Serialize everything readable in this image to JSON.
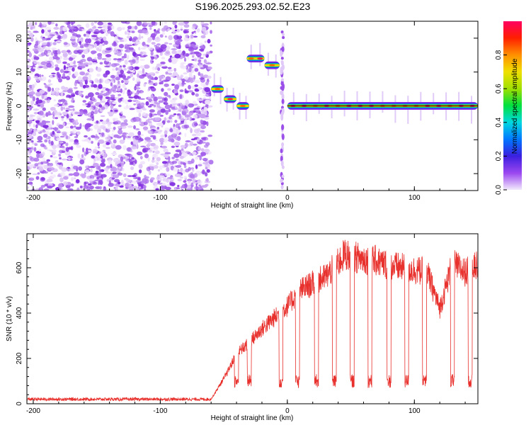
{
  "title": "S196.2025.293.02.52.E23",
  "chart_data": [
    {
      "type": "heatmap",
      "name": "spectrogram",
      "xlabel": "Height of straight line (km)",
      "ylabel": "Frequency (Hz)",
      "xlim": [
        -205,
        150
      ],
      "ylim": [
        -25,
        25
      ],
      "xticks": [
        -200,
        -100,
        0,
        100
      ],
      "yticks": [
        -20,
        -10,
        0,
        10,
        20
      ],
      "regions": [
        {
          "label": "noise",
          "x_range": [
            -205,
            -60
          ],
          "y_range": [
            -25,
            25
          ]
        },
        {
          "label": "tone",
          "x_range": [
            -60,
            -50
          ],
          "freq": 5
        },
        {
          "label": "tone",
          "x_range": [
            -50,
            -40
          ],
          "freq": 2
        },
        {
          "label": "tone",
          "x_range": [
            -40,
            -30
          ],
          "freq": 0
        },
        {
          "label": "tone",
          "x_range": [
            -32,
            -18
          ],
          "freq": 14
        },
        {
          "label": "tone",
          "x_range": [
            -18,
            -6
          ],
          "freq": 12
        },
        {
          "label": "tone",
          "x_range": [
            0,
            150
          ],
          "freq": 0
        }
      ],
      "colorbar": {
        "label": "Normalized spectral amplitude",
        "range": [
          0.0,
          1.0
        ],
        "ticks": [
          0.0,
          0.2,
          0.4,
          0.6,
          0.8
        ],
        "tick_labels": [
          "0.0",
          "0.2",
          "0.4",
          "0.6",
          "0.8"
        ],
        "colors": [
          "#f2eafc",
          "#9b47f0",
          "#3b1fe0",
          "#0077ff",
          "#00d8e0",
          "#00e040",
          "#9fe000",
          "#f0e000",
          "#ff9000",
          "#ff2000",
          "#ff0060"
        ]
      }
    },
    {
      "type": "line",
      "name": "snr",
      "xlabel": "Height of straight line (km)",
      "ylabel": "SNR (10 * v/v)",
      "xlim": [
        -205,
        150
      ],
      "ylim": [
        0,
        750
      ],
      "xticks": [
        -200,
        -100,
        0,
        100
      ],
      "yticks": [
        0,
        200,
        400,
        600
      ],
      "color": "#e8302c",
      "series": [
        {
          "name": "SNR",
          "x": [
            -205,
            -60,
            -48,
            -40,
            -30,
            -20,
            -10,
            0,
            10,
            20,
            30,
            40,
            45,
            50,
            60,
            70,
            80,
            90,
            100,
            110,
            120,
            130,
            140,
            150
          ],
          "values": [
            20,
            20,
            130,
            220,
            270,
            330,
            380,
            430,
            500,
            530,
            560,
            620,
            660,
            650,
            640,
            630,
            610,
            600,
            590,
            580,
            420,
            620,
            580,
            610
          ]
        }
      ]
    }
  ]
}
